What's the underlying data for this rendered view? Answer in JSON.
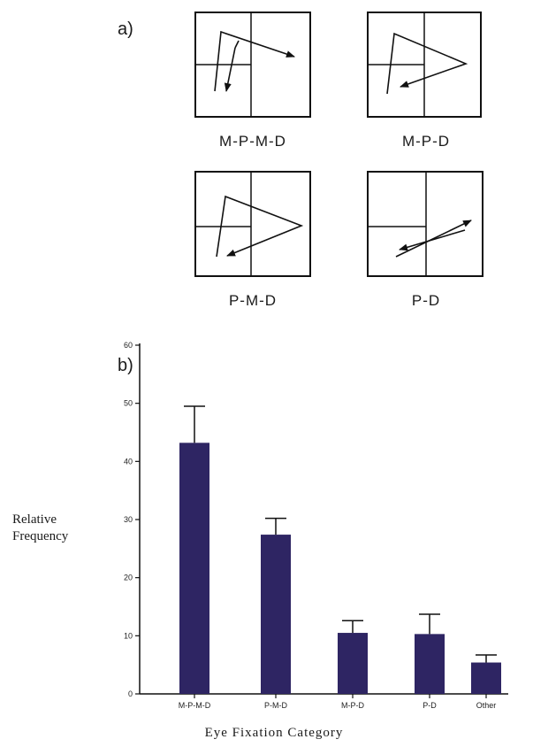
{
  "panel_a_label": "a)",
  "panel_b_label": "b)",
  "diagrams": [
    {
      "caption": "M-P-M-D"
    },
    {
      "caption": "M-P-D"
    },
    {
      "caption": "P-M-D"
    },
    {
      "caption": "P-D"
    }
  ],
  "colors": {
    "bar": "#2e2563",
    "line": "#111111"
  },
  "chart_data": {
    "type": "bar",
    "categories": [
      "M-P-M-D",
      "P-M-D",
      "M-P-D",
      "P-D",
      "Other"
    ],
    "values": [
      43.2,
      27.4,
      10.5,
      10.3,
      5.4
    ],
    "error_upper": [
      49.5,
      30.2,
      12.6,
      13.7,
      6.7
    ],
    "ylabel_lines": [
      "Relative",
      "Frequency"
    ],
    "xlabel": "Eye Fixation Category",
    "ylim": [
      0,
      60
    ],
    "yticks": [
      "0",
      "10",
      "20",
      "30",
      "40",
      "50",
      "60"
    ],
    "grid": false
  }
}
